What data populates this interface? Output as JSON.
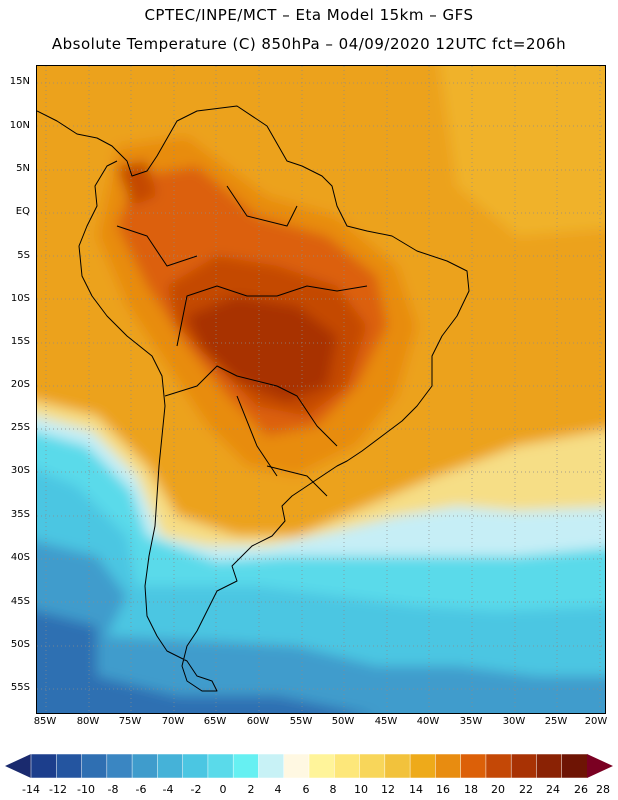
{
  "header": {
    "line1": "CPTEC/INPE/MCT –  Eta Model 15km – GFS",
    "line2": "Absolute Temperature (C) 850hPa – 04/09/2020 12UTC fct=206h"
  },
  "map": {
    "lat_labels": [
      "15N",
      "10N",
      "5N",
      "EQ",
      "5S",
      "10S",
      "15S",
      "20S",
      "25S",
      "30S",
      "35S",
      "40S",
      "45S",
      "50S",
      "55S"
    ],
    "lon_labels": [
      "85W",
      "80W",
      "75W",
      "70W",
      "65W",
      "60W",
      "55W",
      "50W",
      "45W",
      "40W",
      "35W",
      "30W",
      "25W",
      "20W"
    ]
  },
  "colorbar": {
    "labels": [
      "-14",
      "-12",
      "-10",
      "-8",
      "-6",
      "-4",
      "-2",
      "0",
      "2",
      "4",
      "6",
      "8",
      "10",
      "12",
      "14",
      "16",
      "18",
      "20",
      "22",
      "24",
      "26",
      "28"
    ],
    "colors": [
      "#1c3e8c",
      "#2455a0",
      "#2f6fb2",
      "#3a86c2",
      "#3f9ccc",
      "#45b2d8",
      "#4bc6e2",
      "#5adaea",
      "#66f0f2",
      "#c8f2f6",
      "#fff8e2",
      "#fff49a",
      "#fde77a",
      "#f8d65a",
      "#f2c23c",
      "#eeaa1a",
      "#e88c10",
      "#dc6008",
      "#c44806",
      "#a83204",
      "#8a2204",
      "#6e1404"
    ],
    "low_arrow_color": "#1a2a6e",
    "high_arrow_color": "#7a0022"
  }
}
